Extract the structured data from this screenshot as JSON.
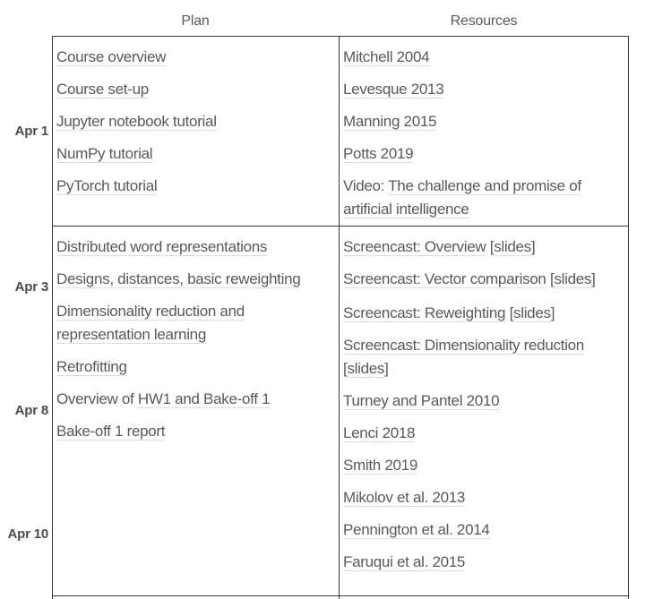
{
  "header": {
    "plan": "Plan",
    "resources": "Resources"
  },
  "colors": {
    "text": "#595959",
    "date": "#4c4c4c",
    "border": "#383838",
    "link_underline": "#dcdcdc",
    "background": "#ffffff"
  },
  "rows": [
    {
      "dates": [
        "Apr 1"
      ],
      "plan": [
        [
          {
            "text": "Course overview",
            "link": true
          }
        ],
        [
          {
            "text": "Course set-up",
            "link": true
          }
        ],
        [
          {
            "text": "Jupyter notebook tutorial",
            "link": true
          }
        ],
        [
          {
            "text": "NumPy tutorial",
            "link": true
          }
        ],
        [
          {
            "text": "PyTorch tutorial",
            "link": true
          }
        ]
      ],
      "resources": [
        [
          {
            "text": "Mitchell 2004",
            "link": true
          }
        ],
        [
          {
            "text": "Levesque 2013",
            "link": true
          }
        ],
        [
          {
            "text": "Manning 2015",
            "link": true
          }
        ],
        [
          {
            "text": "Potts 2019",
            "link": true
          }
        ],
        [
          {
            "text": "Video: ",
            "link": false
          },
          {
            "text": "The challenge and promise of artificial intelligence",
            "link": true
          }
        ]
      ]
    },
    {
      "dates": [
        "Apr 3",
        "Apr 8",
        "Apr 10"
      ],
      "plan": [
        [
          {
            "text": "Distributed word representations",
            "link": true
          }
        ],
        [
          {
            "text": "Designs, distances, basic reweighting",
            "link": true
          }
        ],
        [
          {
            "text": "Dimensionality reduction and representation learning",
            "link": true
          }
        ],
        [
          {
            "text": "Retrofitting",
            "link": true
          }
        ],
        [
          {
            "text": "Overview of ",
            "link": false
          },
          {
            "text": "HW1 and Bake-off 1",
            "link": true
          }
        ],
        [
          {
            "text": "Bake-off 1 report",
            "link": true
          }
        ]
      ],
      "resources": [
        [
          {
            "text": "Screencast: Overview",
            "link": true
          },
          {
            "text": " [",
            "link": false
          },
          {
            "text": "slides",
            "link": true
          },
          {
            "text": "]",
            "link": false
          }
        ],
        [
          {
            "text": "Screencast: Vector comparison",
            "link": true
          },
          {
            "text": " [",
            "link": false
          },
          {
            "text": "slides",
            "link": true
          },
          {
            "text": "]",
            "link": false
          }
        ],
        [
          {
            "text": "Screencast: Reweighting",
            "link": true
          },
          {
            "text": " [",
            "link": false
          },
          {
            "text": "slides",
            "link": true
          },
          {
            "text": "]",
            "link": false
          }
        ],
        [
          {
            "text": "Screencast: Dimensionality reduction",
            "link": true
          },
          {
            "text": " [",
            "link": false
          },
          {
            "text": "slides",
            "link": true
          },
          {
            "text": "]",
            "link": false
          }
        ],
        [
          {
            "text": "Turney and Pantel 2010",
            "link": true
          }
        ],
        [
          {
            "text": "Lenci 2018",
            "link": true
          }
        ],
        [
          {
            "text": "Smith 2019",
            "link": true
          }
        ],
        [
          {
            "text": "Mikolov et al. 2013",
            "link": true
          }
        ],
        [
          {
            "text": "Pennington et al. 2014",
            "link": true
          }
        ],
        [
          {
            "text": "Faruqui et al. 2015",
            "link": true
          }
        ]
      ]
    },
    {
      "dates": [],
      "plan": [],
      "resources": []
    }
  ]
}
